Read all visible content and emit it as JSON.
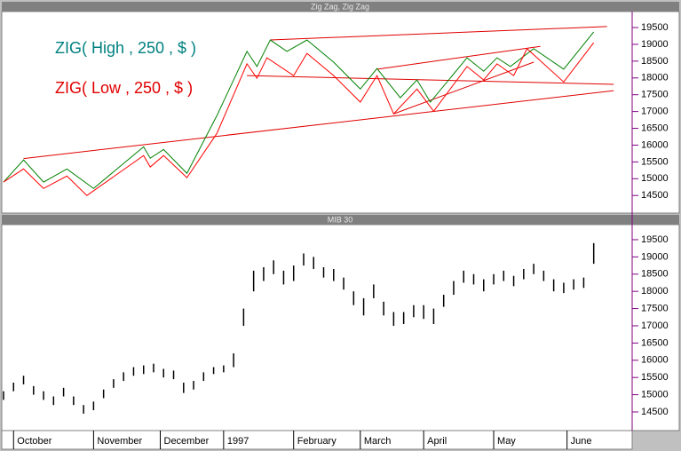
{
  "chart_data": [
    {
      "type": "line",
      "title": "Zig Zag, Zig Zag",
      "xlim": [
        0,
        188
      ],
      "ylim": [
        14030,
        19950
      ],
      "yticks": [
        14500,
        15000,
        15500,
        16000,
        16500,
        17000,
        17500,
        18000,
        18500,
        19000,
        19500
      ],
      "series": [
        {
          "name": "ZIG( High , 250 , $ )",
          "color": "#008000",
          "label_color": "#008080",
          "x": [
            0,
            6,
            12,
            19,
            27,
            42,
            44,
            48,
            55,
            64,
            73,
            76,
            80,
            85,
            91,
            99,
            107,
            112,
            119,
            124,
            128,
            139,
            144,
            148,
            152,
            159,
            168,
            177
          ],
          "values": [
            14900,
            15560,
            14900,
            15290,
            14710,
            15950,
            15610,
            15870,
            15160,
            16880,
            18790,
            18340,
            19130,
            18790,
            19130,
            18470,
            17670,
            18280,
            17410,
            17940,
            17280,
            18600,
            18200,
            18600,
            18340,
            18870,
            18260,
            19370
          ]
        },
        {
          "name": "ZIG( Low , 250 , $ )",
          "color": "#ff0000",
          "label_color": "#e00000",
          "x": [
            0,
            6,
            12,
            19,
            25,
            42,
            44,
            48,
            55,
            64,
            73,
            76,
            79,
            87,
            91,
            99,
            107,
            112,
            117,
            124,
            129,
            139,
            144,
            148,
            153,
            157,
            168,
            177
          ],
          "values": [
            14900,
            15290,
            14710,
            15080,
            14500,
            15690,
            15350,
            15690,
            15030,
            16350,
            18420,
            17990,
            18600,
            18070,
            18730,
            18070,
            17280,
            18070,
            16930,
            17670,
            17010,
            18340,
            17940,
            18420,
            18070,
            18870,
            17880,
            19050
          ]
        }
      ],
      "trend_lines": {
        "color": "#e00000",
        "lines": [
          {
            "x": [
              6,
              183
            ],
            "values": [
              15600,
              17620
            ]
          },
          {
            "x": [
              80,
              181
            ],
            "values": [
              19130,
              19530
            ]
          },
          {
            "x": [
              73,
              183
            ],
            "values": [
              18070,
              17810
            ]
          },
          {
            "x": [
              112,
              161
            ],
            "values": [
              18260,
              18940
            ]
          },
          {
            "x": [
              117,
              159
            ],
            "values": [
              16930,
              18470
            ]
          }
        ]
      }
    },
    {
      "type": "hilo",
      "title": "MIB 30",
      "color": "#000000",
      "xlim": [
        0,
        188
      ],
      "ylim": [
        14010,
        19860
      ],
      "yticks": [
        14500,
        15000,
        15500,
        16000,
        16500,
        17000,
        17500,
        18000,
        18500,
        19000,
        19500
      ],
      "xticks": [
        {
          "value": 3,
          "label": "October"
        },
        {
          "value": 27,
          "label": "November"
        },
        {
          "value": 47,
          "label": "December"
        },
        {
          "value": 66,
          "label": "1997"
        },
        {
          "value": 87,
          "label": "February"
        },
        {
          "value": 107,
          "label": "March"
        },
        {
          "value": 126,
          "label": "April"
        },
        {
          "value": 147,
          "label": "May"
        },
        {
          "value": 169,
          "label": "June"
        }
      ],
      "x": [
        0,
        3,
        6,
        9,
        12,
        15,
        18,
        21,
        24,
        27,
        30,
        33,
        36,
        39,
        42,
        45,
        48,
        51,
        54,
        57,
        60,
        63,
        66,
        69,
        72,
        75,
        78,
        81,
        84,
        87,
        90,
        93,
        96,
        99,
        102,
        105,
        108,
        111,
        114,
        117,
        120,
        123,
        126,
        129,
        132,
        135,
        138,
        141,
        144,
        147,
        150,
        153,
        156,
        159,
        162,
        165,
        168,
        171,
        174,
        177
      ],
      "high": [
        15100,
        15350,
        15550,
        15250,
        15100,
        14950,
        15200,
        14950,
        14700,
        14800,
        15150,
        15450,
        15650,
        15800,
        15850,
        15900,
        15750,
        15700,
        15350,
        15400,
        15650,
        15800,
        15850,
        16200,
        17500,
        18600,
        18700,
        18900,
        18600,
        18750,
        19100,
        19000,
        18700,
        18650,
        18400,
        18000,
        17800,
        18200,
        17700,
        17400,
        17400,
        17600,
        17600,
        17500,
        17900,
        18300,
        18600,
        18500,
        18350,
        18500,
        18600,
        18450,
        18650,
        18800,
        18600,
        18350,
        18250,
        18350,
        18400,
        19400
      ],
      "low": [
        14850,
        15100,
        15300,
        15000,
        14850,
        14700,
        14950,
        14700,
        14450,
        14550,
        14900,
        15200,
        15400,
        15550,
        15600,
        15650,
        15500,
        15450,
        15050,
        15150,
        15400,
        15600,
        15650,
        15800,
        17000,
        18000,
        18300,
        18500,
        18200,
        18300,
        18750,
        18650,
        18400,
        18300,
        18050,
        17600,
        17300,
        17800,
        17300,
        17000,
        17050,
        17250,
        17200,
        17050,
        17550,
        17900,
        18250,
        18200,
        18000,
        18200,
        18300,
        18150,
        18350,
        18500,
        18300,
        18000,
        17950,
        18050,
        18100,
        18800
      ]
    }
  ]
}
